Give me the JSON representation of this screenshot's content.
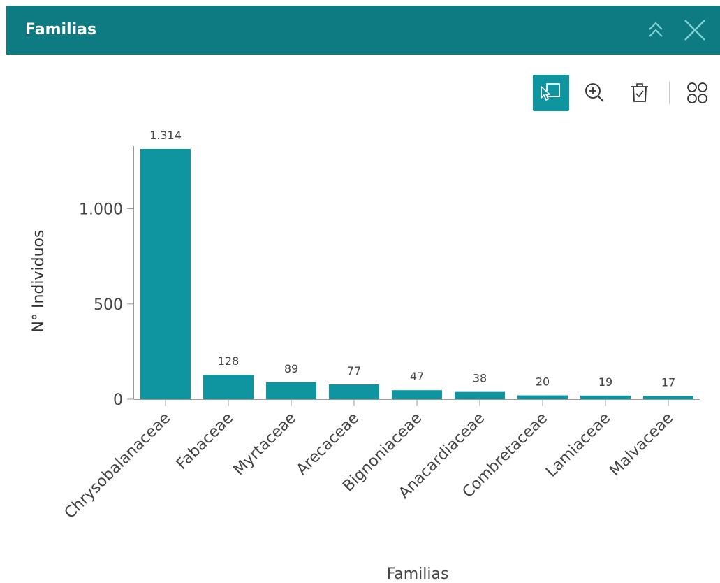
{
  "window": {
    "title": "Familias"
  },
  "icons": {
    "collapse": "double-chevron-up-icon",
    "close": "close-icon",
    "select": "select-rectangle-icon",
    "zoom": "zoom-in-icon",
    "clear": "clear-selection-icon",
    "more": "grid-icon"
  },
  "colors": {
    "header": "#0e7a82",
    "bar": "#0e95a0",
    "active_tool": "#0e95a0"
  },
  "chart_data": {
    "type": "bar",
    "categories": [
      "Chrysobalanaceae",
      "Fabaceae",
      "Myrtaceae",
      "Arecaceae",
      "Bignoniaceae",
      "Anacardiaceae",
      "Combretaceae",
      "Lamiaceae",
      "Malvaceae"
    ],
    "values": [
      1314,
      128,
      89,
      77,
      47,
      38,
      20,
      19,
      17
    ],
    "value_labels": [
      "1.314",
      "128",
      "89",
      "77",
      "47",
      "38",
      "20",
      "19",
      "17"
    ],
    "xlabel": "Familias",
    "ylabel": "N° Individuos",
    "ylim": [
      0,
      1314
    ],
    "yticks": [
      0,
      500,
      1000
    ],
    "ytick_labels": [
      "0",
      "500",
      "1.000"
    ],
    "grid": false,
    "legend": "none"
  }
}
